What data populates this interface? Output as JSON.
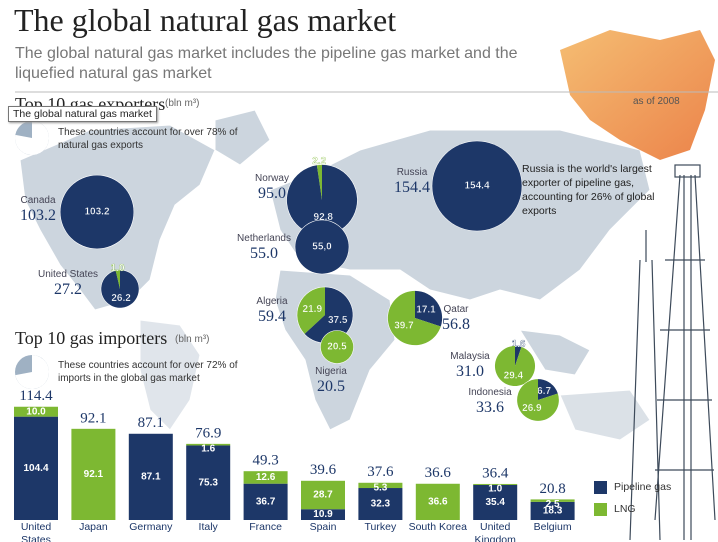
{
  "header": {
    "title": "The global natural gas market",
    "subtitle": "The global natural gas market includes the pipeline gas market and the liquefied natural gas market",
    "as_of": "as of 2008"
  },
  "tooltip": "The global natural gas market",
  "chart_data": [
    {
      "type": "bubble-map",
      "title": "Top 10 gas exporters",
      "unit": "(bln m³)",
      "note": "These countries account for over 78% of natural gas exports",
      "share": 78,
      "annotation": "Russia is the world's largest exporter of pipeline gas, accounting for 26% of global exports",
      "categories": [
        "Canada",
        "United States",
        "Norway",
        "Russia",
        "Netherlands",
        "Algeria",
        "Nigeria",
        "Qatar",
        "Malaysia",
        "Indonesia"
      ],
      "totals": [
        103.2,
        27.2,
        95.0,
        154.4,
        55.0,
        59.4,
        20.5,
        56.8,
        31.0,
        33.6
      ],
      "total_labels": [
        "103.2",
        "27.2",
        "95.0",
        "154.4",
        "55.0",
        "59.4",
        "20.5",
        "56.8",
        "31.0",
        "33.6"
      ],
      "series": [
        {
          "name": "Pipeline gas",
          "color": "#1d3768",
          "values": [
            103.2,
            26.2,
            92.8,
            154.4,
            55.0,
            37.5,
            null,
            17.1,
            1.6,
            6.7
          ],
          "value_labels": [
            "103.2",
            "26.2",
            "92.8",
            "154.4",
            "55,0",
            "37.5",
            null,
            "17.1",
            "1.6",
            "6.7"
          ]
        },
        {
          "name": "LNG",
          "color": "#7db832",
          "values": [
            null,
            1.0,
            2.2,
            null,
            null,
            21.9,
            20.5,
            39.7,
            29.4,
            26.9
          ],
          "value_labels": [
            null,
            "1.0",
            "2.2",
            null,
            null,
            "21.9",
            "20.5",
            "39.7",
            "29.4",
            "26.9"
          ]
        }
      ]
    },
    {
      "type": "bar",
      "stacked": true,
      "title": "Top 10 gas importers",
      "unit": "(bln m³)",
      "note": "These countries account for over 72% of imports in the global gas market",
      "share": 72,
      "categories": [
        "United States",
        "Japan",
        "Germany",
        "Italy",
        "France",
        "Spain",
        "Turkey",
        "South Korea",
        "United Kingdom",
        "Belgium"
      ],
      "totals": [
        114.4,
        92.1,
        87.1,
        76.9,
        49.3,
        39.6,
        37.6,
        36.6,
        36.4,
        20.8
      ],
      "total_labels": [
        "114.4",
        "92.1",
        "87.1",
        "76.9",
        "49.3",
        "39.6",
        "37.6",
        "36.6",
        "36.4",
        "20.8"
      ],
      "series": [
        {
          "name": "Pipeline gas",
          "color": "#1d3768",
          "values": [
            104.4,
            null,
            87.1,
            75.3,
            36.7,
            10.9,
            32.3,
            null,
            35.4,
            18.3
          ],
          "value_labels": [
            "104.4",
            null,
            "87.1",
            "75.3",
            "36.7",
            "10.9",
            "32.3",
            null,
            "35.4",
            "18.3"
          ]
        },
        {
          "name": "LNG",
          "color": "#7db832",
          "values": [
            10.0,
            92.1,
            null,
            1.6,
            12.6,
            28.7,
            5.3,
            36.6,
            1.0,
            2.5
          ],
          "value_labels": [
            "10.0",
            "92.1",
            null,
            "1.6",
            "12.6",
            "28.7",
            "5.3",
            "36.6",
            "1.0",
            "2.5"
          ]
        }
      ]
    }
  ]
}
